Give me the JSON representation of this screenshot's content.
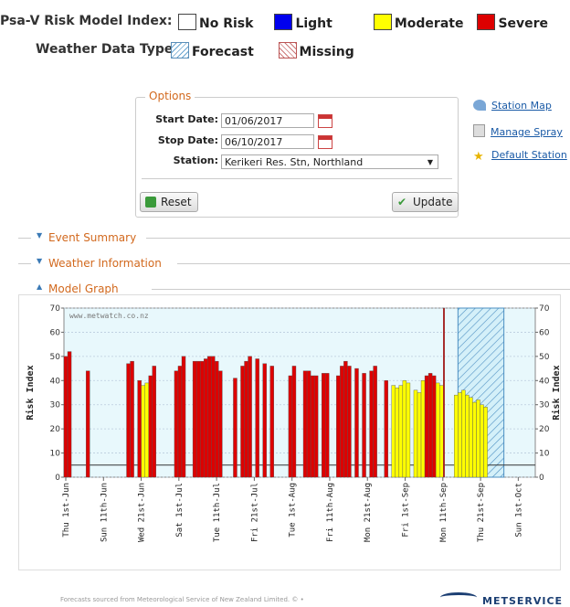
{
  "legend": {
    "risk_label": "Psa-V Risk Model Index:",
    "risk_items": [
      {
        "label": "No Risk",
        "color": "#ffffff"
      },
      {
        "label": "Light",
        "color": "#0000ee"
      },
      {
        "label": "Moderate",
        "color": "#ffff00"
      },
      {
        "label": "Severe",
        "color": "#dd0000"
      }
    ],
    "weather_label": "Weather Data Type:",
    "weather_items": [
      {
        "label": "Forecast",
        "icon": "forecast-hatch"
      },
      {
        "label": "Missing",
        "icon": "missing-hatch"
      }
    ]
  },
  "options": {
    "title": "Options",
    "start_label": "Start Date:",
    "start_value": "01/06/2017",
    "stop_label": "Stop Date:",
    "stop_value": "06/10/2017",
    "station_label": "Station:",
    "station_value": "Kerikeri Res. Stn, Northland",
    "reset_label": "Reset",
    "update_label": "Update"
  },
  "side_links": [
    {
      "label": "Station Map",
      "icon": "satellite-dish-icon"
    },
    {
      "label": "Manage Spray",
      "icon": "clipboard-icon"
    },
    {
      "label": "Default Station",
      "icon": "star-icon"
    }
  ],
  "sections": {
    "event_summary": "Event Summary",
    "weather_info": "Weather Information",
    "model_graph": "Model Graph"
  },
  "chart_data": {
    "type": "bar",
    "watermark": "www.metwatch.co.nz",
    "ylabel": "Risk Index",
    "ylim": [
      0,
      70
    ],
    "yticks": [
      0,
      10,
      20,
      30,
      40,
      50,
      60,
      70
    ],
    "threshold": 5,
    "x_tick_labels": [
      "Thu 1st-Jun",
      "Sun 11th-Jun",
      "Wed 21st-Jun",
      "Sat 1st-Jul",
      "Tue 11th-Jul",
      "Fri 21st-Jul",
      "Tue 1st-Aug",
      "Fri 11th-Aug",
      "Mon 21st-Aug",
      "Fri 1st-Sep",
      "Mon 11th-Sep",
      "Thu 21st-Sep",
      "Sun 1st-Oct"
    ],
    "colors": {
      "severe": "#dd0000",
      "moderate": "#ffff00",
      "forecast_bg": "#cfeef7",
      "bg": "#e8f8fc"
    },
    "bars": [
      {
        "day": 0,
        "value": 50,
        "risk": "severe"
      },
      {
        "day": 1,
        "value": 52,
        "risk": "severe"
      },
      {
        "day": 6,
        "value": 44,
        "risk": "severe"
      },
      {
        "day": 17,
        "value": 47,
        "risk": "severe"
      },
      {
        "day": 18,
        "value": 48,
        "risk": "severe"
      },
      {
        "day": 20,
        "value": 40,
        "risk": "severe"
      },
      {
        "day": 21,
        "value": 38,
        "risk": "moderate"
      },
      {
        "day": 22,
        "value": 39,
        "risk": "moderate"
      },
      {
        "day": 23,
        "value": 42,
        "risk": "severe"
      },
      {
        "day": 24,
        "value": 46,
        "risk": "severe"
      },
      {
        "day": 30,
        "value": 44,
        "risk": "severe"
      },
      {
        "day": 31,
        "value": 46,
        "risk": "severe"
      },
      {
        "day": 32,
        "value": 50,
        "risk": "severe"
      },
      {
        "day": 35,
        "value": 48,
        "risk": "severe"
      },
      {
        "day": 36,
        "value": 48,
        "risk": "severe"
      },
      {
        "day": 37,
        "value": 48,
        "risk": "severe"
      },
      {
        "day": 38,
        "value": 49,
        "risk": "severe"
      },
      {
        "day": 39,
        "value": 50,
        "risk": "severe"
      },
      {
        "day": 40,
        "value": 50,
        "risk": "severe"
      },
      {
        "day": 41,
        "value": 48,
        "risk": "severe"
      },
      {
        "day": 42,
        "value": 44,
        "risk": "severe"
      },
      {
        "day": 46,
        "value": 41,
        "risk": "severe"
      },
      {
        "day": 48,
        "value": 46,
        "risk": "severe"
      },
      {
        "day": 49,
        "value": 48,
        "risk": "severe"
      },
      {
        "day": 50,
        "value": 50,
        "risk": "severe"
      },
      {
        "day": 52,
        "value": 49,
        "risk": "severe"
      },
      {
        "day": 54,
        "value": 47,
        "risk": "severe"
      },
      {
        "day": 56,
        "value": 46,
        "risk": "severe"
      },
      {
        "day": 61,
        "value": 42,
        "risk": "severe"
      },
      {
        "day": 62,
        "value": 46,
        "risk": "severe"
      },
      {
        "day": 65,
        "value": 44,
        "risk": "severe"
      },
      {
        "day": 66,
        "value": 44,
        "risk": "severe"
      },
      {
        "day": 67,
        "value": 42,
        "risk": "severe"
      },
      {
        "day": 68,
        "value": 42,
        "risk": "severe"
      },
      {
        "day": 70,
        "value": 43,
        "risk": "severe"
      },
      {
        "day": 71,
        "value": 43,
        "risk": "severe"
      },
      {
        "day": 74,
        "value": 42,
        "risk": "severe"
      },
      {
        "day": 75,
        "value": 46,
        "risk": "severe"
      },
      {
        "day": 76,
        "value": 48,
        "risk": "severe"
      },
      {
        "day": 77,
        "value": 46,
        "risk": "severe"
      },
      {
        "day": 79,
        "value": 45,
        "risk": "severe"
      },
      {
        "day": 81,
        "value": 43,
        "risk": "severe"
      },
      {
        "day": 83,
        "value": 44,
        "risk": "severe"
      },
      {
        "day": 84,
        "value": 46,
        "risk": "severe"
      },
      {
        "day": 87,
        "value": 40,
        "risk": "severe"
      },
      {
        "day": 89,
        "value": 38,
        "risk": "moderate"
      },
      {
        "day": 90,
        "value": 37,
        "risk": "moderate"
      },
      {
        "day": 91,
        "value": 38,
        "risk": "moderate"
      },
      {
        "day": 92,
        "value": 40,
        "risk": "moderate"
      },
      {
        "day": 93,
        "value": 39,
        "risk": "moderate"
      },
      {
        "day": 95,
        "value": 36,
        "risk": "moderate"
      },
      {
        "day": 96,
        "value": 35,
        "risk": "moderate"
      },
      {
        "day": 97,
        "value": 40,
        "risk": "moderate"
      },
      {
        "day": 98,
        "value": 42,
        "risk": "severe"
      },
      {
        "day": 99,
        "value": 43,
        "risk": "severe"
      },
      {
        "day": 100,
        "value": 42,
        "risk": "severe"
      },
      {
        "day": 101,
        "value": 39,
        "risk": "moderate"
      },
      {
        "day": 102,
        "value": 38,
        "risk": "moderate"
      },
      {
        "day": 103,
        "value": 70,
        "risk": "severe"
      },
      {
        "day": 106,
        "value": 34,
        "risk": "moderate"
      },
      {
        "day": 107,
        "value": 35,
        "risk": "moderate"
      },
      {
        "day": 108,
        "value": 36,
        "risk": "moderate"
      },
      {
        "day": 109,
        "value": 34,
        "risk": "moderate"
      },
      {
        "day": 110,
        "value": 33,
        "risk": "moderate"
      },
      {
        "day": 111,
        "value": 31,
        "risk": "moderate"
      },
      {
        "day": 112,
        "value": 32,
        "risk": "moderate"
      },
      {
        "day": 113,
        "value": 30,
        "risk": "moderate"
      },
      {
        "day": 114,
        "value": 29,
        "risk": "moderate"
      }
    ],
    "total_days": 128,
    "forecast_start_day": 107
  },
  "footer": {
    "text": "Forecasts sourced from Meteorological Service of New Zealand Limited. © •",
    "brand": "METSERVICE"
  }
}
